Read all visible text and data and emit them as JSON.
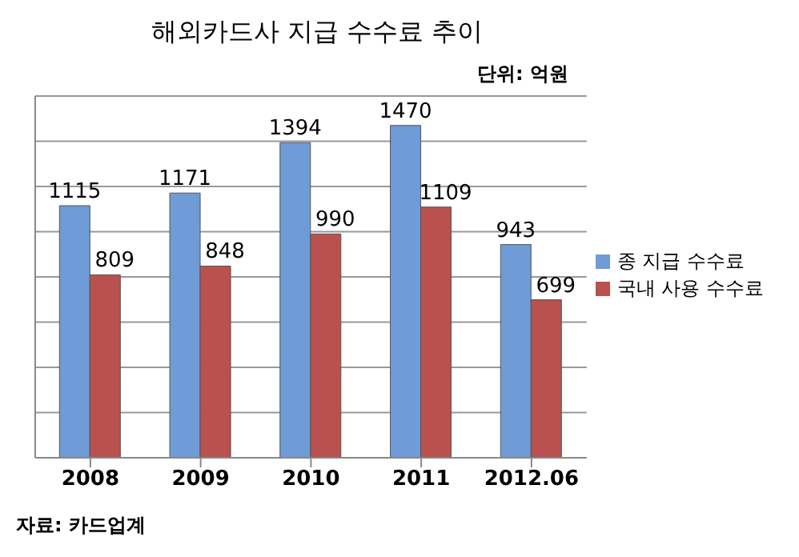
{
  "chart_data": {
    "type": "bar",
    "title": "해외카드사 지급 수수료 추이",
    "categories": [
      "2008",
      "2009",
      "2010",
      "2011",
      "2012.06"
    ],
    "series": [
      {
        "name": "종 지급 수수료",
        "color": "#6f9bd6",
        "values": [
          1115,
          1171,
          1394,
          1470,
          943
        ]
      },
      {
        "name": "국내 사용 수수료",
        "color": "#b9514e",
        "values": [
          809,
          848,
          990,
          1109,
          699
        ]
      }
    ],
    "tick_labels": "x",
    "grid": "y",
    "legend": "right",
    "data_labels": true,
    "annotations": [
      "단위: 억원",
      "자료: 카드업계"
    ]
  }
}
